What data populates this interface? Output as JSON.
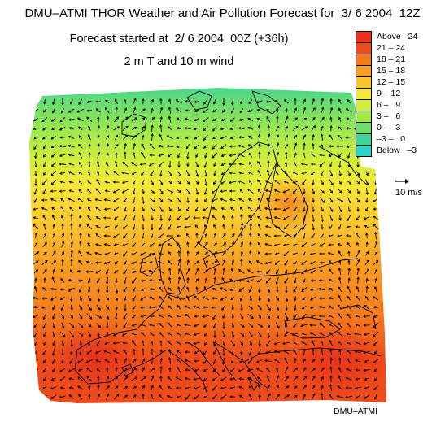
{
  "header": {
    "title": "DMU–ATMI THOR Weather and Air Pollution Forecast for  3/ 6 2004  12Z",
    "subtitle": "Forecast started at  2/ 6 2004  00Z (+36h)",
    "field": "2 m T and 10 m wind"
  },
  "legend": {
    "items": [
      {
        "label": "Above   24",
        "color": "#e8301c"
      },
      {
        "label": "21 – 24",
        "color": "#ee4a1a"
      },
      {
        "label": "18 – 21",
        "color": "#f47a1c"
      },
      {
        "label": "15 – 18",
        "color": "#f89e22"
      },
      {
        "label": "12 – 15",
        "color": "#fbc52c"
      },
      {
        "label": "9 – 12",
        "color": "#f6e83a"
      },
      {
        "label": "6 –   9",
        "color": "#d2ee3a"
      },
      {
        "label": "3 –   6",
        "color": "#a3ea4a"
      },
      {
        "label": "0 –   3",
        "color": "#70de6a"
      },
      {
        "label": "–3 –   0",
        "color": "#40d69a"
      },
      {
        "label": "Below   –3",
        "color": "#2ad2c8"
      }
    ]
  },
  "wind_reference": {
    "label": "10 m/s"
  },
  "credit": "DMU–ATMI",
  "colors": {
    "coastline": "#000000",
    "arrows": "#000000",
    "background": "#ffffff"
  }
}
